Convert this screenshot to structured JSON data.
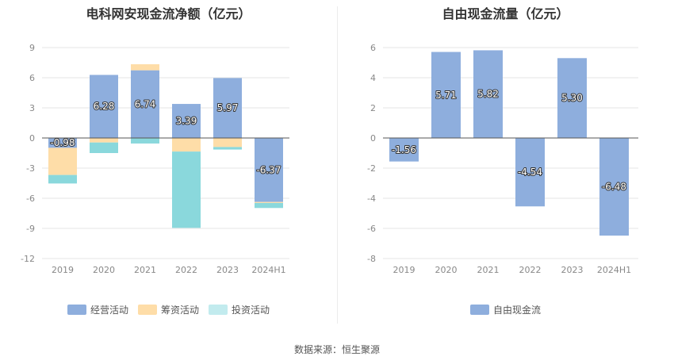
{
  "source_text": "数据来源：恒生聚源",
  "chart_data": [
    {
      "type": "bar",
      "stacked": true,
      "title": "电科网安现金流净额（亿元）",
      "categories": [
        "2019",
        "2020",
        "2021",
        "2022",
        "2023",
        "2024H1"
      ],
      "ylim": [
        -12,
        9
      ],
      "yticks": [
        9,
        6,
        3,
        0,
        -3,
        -6,
        -9,
        -12
      ],
      "grid": true,
      "legend_position": "bottom",
      "series": [
        {
          "name": "经营活动",
          "color": "#8eaedd",
          "values": [
            -0.98,
            6.28,
            6.74,
            3.39,
            5.97,
            -6.37
          ],
          "labels": [
            "-0.98",
            "6.28",
            "6.74",
            "3.39",
            "5.97",
            "-6.37"
          ]
        },
        {
          "name": "筹资活动",
          "color": "#fedda8",
          "values": [
            -2.7,
            -0.45,
            0.6,
            -1.35,
            -0.9,
            -0.1
          ]
        },
        {
          "name": "投资活动",
          "color": "#8ad8dc",
          "legend_color": "#c2ebee",
          "values": [
            -0.85,
            -1.05,
            -0.55,
            -7.6,
            -0.25,
            -0.5
          ]
        }
      ]
    },
    {
      "type": "bar",
      "title": "自由现金流量（亿元）",
      "categories": [
        "2019",
        "2020",
        "2021",
        "2022",
        "2023",
        "2024H1"
      ],
      "ylim": [
        -8,
        6
      ],
      "yticks": [
        6,
        4,
        2,
        0,
        -2,
        -4,
        -6,
        -8
      ],
      "grid": true,
      "legend_position": "bottom",
      "series": [
        {
          "name": "自由现金流",
          "color": "#8eaedd",
          "values": [
            -1.56,
            5.71,
            5.82,
            -4.54,
            5.3,
            -6.48
          ],
          "labels": [
            "-1.56",
            "5.71",
            "5.82",
            "-4.54",
            "5.30",
            "-6.48"
          ]
        }
      ]
    }
  ]
}
